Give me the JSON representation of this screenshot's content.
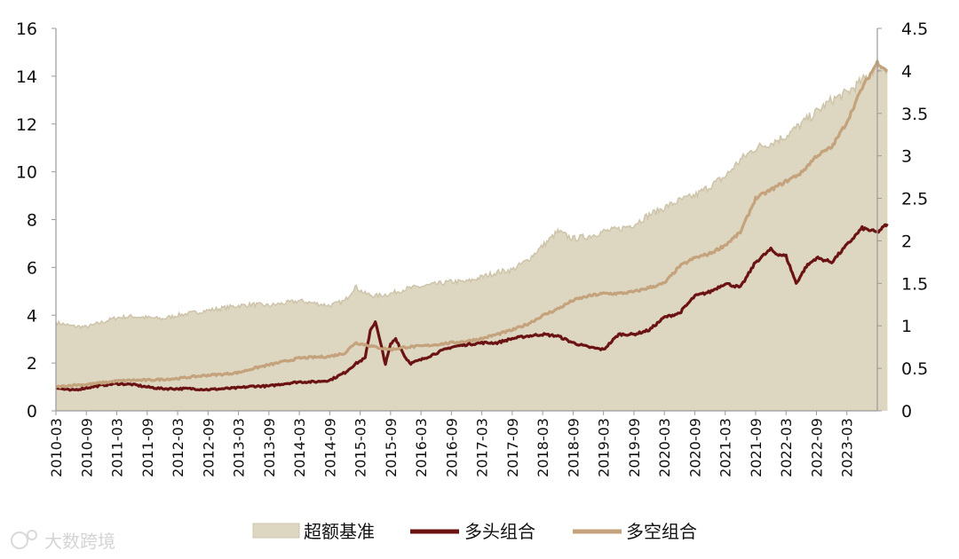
{
  "chart_data": {
    "type": "line",
    "title": "",
    "x_ticks": [
      "2010-03",
      "2010-09",
      "2011-03",
      "2011-09",
      "2012-03",
      "2012-09",
      "2013-03",
      "2013-09",
      "2014-03",
      "2014-09",
      "2015-03",
      "2015-09",
      "2016-03",
      "2016-09",
      "2017-03",
      "2017-09",
      "2018-03",
      "2018-09",
      "2019-03",
      "2019-09",
      "2020-03",
      "2020-09",
      "2021-03",
      "2021-09",
      "2022-03",
      "2022-09",
      "2023-03"
    ],
    "x_range": [
      "2010-03",
      "2023-11"
    ],
    "y_left": {
      "min": 0,
      "max": 16,
      "ticks": [
        "0",
        "2",
        "4",
        "6",
        "8",
        "10",
        "12",
        "14",
        "16"
      ]
    },
    "y_right": {
      "min": 0,
      "max": 4.5,
      "ticks": [
        "0",
        "0.5",
        "1",
        "1.5",
        "2",
        "2.5",
        "3",
        "3.5",
        "4",
        "4.5"
      ]
    },
    "grid": false,
    "legend_position": "bottom",
    "series": [
      {
        "name": "超额基准",
        "style": "area",
        "axis": "left",
        "color": "#ddd6c1",
        "x": [
          "2010-03",
          "2010-06",
          "2010-09",
          "2010-12",
          "2011-03",
          "2011-06",
          "2011-09",
          "2011-12",
          "2012-03",
          "2012-06",
          "2012-09",
          "2012-12",
          "2013-03",
          "2013-06",
          "2013-09",
          "2013-12",
          "2014-03",
          "2014-06",
          "2014-09",
          "2014-12",
          "2015-02",
          "2015-04",
          "2015-06",
          "2015-09",
          "2015-12",
          "2016-03",
          "2016-06",
          "2016-09",
          "2016-12",
          "2017-03",
          "2017-06",
          "2017-09",
          "2017-12",
          "2018-03",
          "2018-06",
          "2018-09",
          "2018-12",
          "2019-03",
          "2019-06",
          "2019-09",
          "2019-12",
          "2020-03",
          "2020-06",
          "2020-09",
          "2020-12",
          "2021-03",
          "2021-06",
          "2021-09",
          "2021-12",
          "2022-03",
          "2022-06",
          "2022-09",
          "2022-12",
          "2023-03",
          "2023-06",
          "2023-09",
          "2023-11"
        ],
        "values": [
          3.7,
          3.55,
          3.5,
          3.7,
          3.9,
          3.95,
          3.9,
          3.85,
          4.0,
          4.1,
          4.2,
          4.3,
          4.4,
          4.45,
          4.4,
          4.5,
          4.6,
          4.5,
          4.4,
          4.6,
          5.2,
          4.9,
          4.8,
          4.9,
          5.1,
          5.2,
          5.3,
          5.4,
          5.4,
          5.6,
          5.8,
          5.9,
          6.3,
          6.9,
          7.5,
          7.2,
          7.3,
          7.5,
          7.6,
          7.8,
          8.2,
          8.5,
          8.8,
          9.0,
          9.4,
          9.8,
          10.5,
          11.0,
          11.2,
          11.5,
          12.0,
          12.5,
          13.0,
          13.3,
          13.8,
          14.4,
          14.3
        ]
      },
      {
        "name": "多头组合",
        "style": "line",
        "axis": "right",
        "color": "#6b1313",
        "x": [
          "2010-03",
          "2010-06",
          "2010-09",
          "2010-12",
          "2011-03",
          "2011-06",
          "2011-09",
          "2011-12",
          "2012-03",
          "2012-06",
          "2012-09",
          "2012-12",
          "2013-03",
          "2013-06",
          "2013-09",
          "2013-12",
          "2014-03",
          "2014-06",
          "2014-09",
          "2014-12",
          "2015-02",
          "2015-04",
          "2015-05",
          "2015-06",
          "2015-07",
          "2015-08",
          "2015-09",
          "2015-10",
          "2015-12",
          "2016-01",
          "2016-03",
          "2016-06",
          "2016-09",
          "2016-12",
          "2017-03",
          "2017-06",
          "2017-09",
          "2017-12",
          "2018-03",
          "2018-06",
          "2018-09",
          "2018-12",
          "2019-03",
          "2019-06",
          "2019-09",
          "2019-12",
          "2020-03",
          "2020-06",
          "2020-09",
          "2020-12",
          "2021-03",
          "2021-06",
          "2021-09",
          "2021-12",
          "2022-01",
          "2022-03",
          "2022-05",
          "2022-07",
          "2022-09",
          "2022-12",
          "2023-03",
          "2023-06",
          "2023-09",
          "2023-11"
        ],
        "values": [
          0.27,
          0.24,
          0.27,
          0.3,
          0.32,
          0.31,
          0.28,
          0.26,
          0.26,
          0.26,
          0.25,
          0.26,
          0.27,
          0.29,
          0.29,
          0.32,
          0.34,
          0.34,
          0.36,
          0.45,
          0.55,
          0.62,
          0.95,
          1.05,
          0.8,
          0.55,
          0.78,
          0.85,
          0.62,
          0.56,
          0.6,
          0.68,
          0.75,
          0.78,
          0.8,
          0.8,
          0.85,
          0.88,
          0.9,
          0.88,
          0.8,
          0.75,
          0.72,
          0.9,
          0.9,
          0.95,
          1.1,
          1.15,
          1.35,
          1.4,
          1.5,
          1.45,
          1.75,
          1.9,
          1.85,
          1.82,
          1.5,
          1.7,
          1.8,
          1.75,
          1.95,
          2.15,
          2.1,
          2.2
        ]
      },
      {
        "name": "多空组合",
        "style": "line",
        "axis": "right",
        "color": "#c4a27c",
        "x": [
          "2010-03",
          "2010-06",
          "2010-09",
          "2010-12",
          "2011-03",
          "2011-06",
          "2011-09",
          "2011-12",
          "2012-03",
          "2012-06",
          "2012-09",
          "2012-12",
          "2013-03",
          "2013-06",
          "2013-09",
          "2013-12",
          "2014-03",
          "2014-06",
          "2014-09",
          "2014-12",
          "2015-02",
          "2015-04",
          "2015-06",
          "2015-09",
          "2015-12",
          "2016-03",
          "2016-06",
          "2016-09",
          "2016-12",
          "2017-03",
          "2017-06",
          "2017-09",
          "2017-12",
          "2018-03",
          "2018-06",
          "2018-09",
          "2018-12",
          "2019-03",
          "2019-06",
          "2019-09",
          "2019-12",
          "2020-03",
          "2020-06",
          "2020-09",
          "2020-12",
          "2021-03",
          "2021-06",
          "2021-09",
          "2021-12",
          "2022-03",
          "2022-06",
          "2022-09",
          "2022-12",
          "2023-03",
          "2023-06",
          "2023-09",
          "2023-11"
        ],
        "values": [
          0.28,
          0.3,
          0.31,
          0.33,
          0.35,
          0.36,
          0.36,
          0.37,
          0.38,
          0.4,
          0.42,
          0.43,
          0.45,
          0.5,
          0.54,
          0.58,
          0.62,
          0.63,
          0.64,
          0.68,
          0.8,
          0.78,
          0.75,
          0.72,
          0.75,
          0.76,
          0.78,
          0.8,
          0.82,
          0.85,
          0.9,
          0.95,
          1.02,
          1.12,
          1.2,
          1.3,
          1.35,
          1.38,
          1.38,
          1.4,
          1.45,
          1.5,
          1.7,
          1.8,
          1.85,
          1.95,
          2.1,
          2.5,
          2.6,
          2.7,
          2.8,
          3.0,
          3.1,
          3.4,
          3.8,
          4.1,
          4.0
        ]
      }
    ]
  },
  "watermark": "大数跨境"
}
